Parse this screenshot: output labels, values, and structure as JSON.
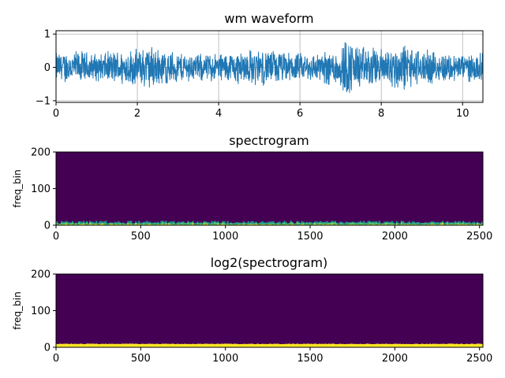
{
  "chart_data": [
    {
      "type": "line",
      "title": "wm waveform",
      "xlabel": "",
      "ylabel": "",
      "xlim": [
        0,
        10.5
      ],
      "ylim": [
        -1.05,
        1.1
      ],
      "xticks": [
        0,
        2,
        4,
        6,
        8,
        10
      ],
      "xtick_labels": [
        "0",
        "2",
        "4",
        "6",
        "8",
        "10"
      ],
      "yticks": [
        -1,
        0,
        1
      ],
      "ytick_labels": [
        "−1",
        "0",
        "1"
      ],
      "grid": true,
      "color": "#1f77b4",
      "envelope": {
        "x": [
          0,
          0.5,
          1,
          1.5,
          2,
          2.3,
          2.7,
          3,
          3.5,
          4,
          4.5,
          5,
          5.5,
          6,
          6.5,
          7,
          7.1,
          7.5,
          8,
          8.5,
          9,
          9.5,
          10,
          10.5
        ],
        "amplitude": [
          0.5,
          0.55,
          0.45,
          0.55,
          0.6,
          0.75,
          0.55,
          0.5,
          0.45,
          0.5,
          0.55,
          0.6,
          0.55,
          0.45,
          0.5,
          0.7,
          1.0,
          0.7,
          0.6,
          0.8,
          0.55,
          0.5,
          0.45,
          0.45
        ]
      }
    },
    {
      "type": "heatmap",
      "title": "spectrogram",
      "xlabel": "",
      "ylabel": "freq_bin",
      "xlim": [
        0,
        2520
      ],
      "ylim": [
        0,
        200
      ],
      "xticks": [
        0,
        500,
        1000,
        1500,
        2000,
        2500
      ],
      "xtick_labels": [
        "0",
        "500",
        "1000",
        "1500",
        "2000",
        "2500"
      ],
      "yticks": [
        0,
        100,
        200
      ],
      "ytick_labels": [
        "0",
        "100",
        "200"
      ],
      "colormap": "viridis",
      "background_color": "#440154",
      "energy_band_freq_bins": [
        0,
        12
      ],
      "band_colors": [
        "#21918c",
        "#5ec962",
        "#fde725"
      ]
    },
    {
      "type": "heatmap",
      "title": "log2(spectrogram)",
      "xlabel": "",
      "ylabel": "freq_bin",
      "xlim": [
        0,
        2520
      ],
      "ylim": [
        0,
        200
      ],
      "xticks": [
        0,
        500,
        1000,
        1500,
        2000,
        2500
      ],
      "xtick_labels": [
        "0",
        "500",
        "1000",
        "1500",
        "2000",
        "2500"
      ],
      "yticks": [
        0,
        100,
        200
      ],
      "ytick_labels": [
        "0",
        "100",
        "200"
      ],
      "colormap": "viridis",
      "background_color": "#440154",
      "energy_band_freq_bins": [
        0,
        10
      ],
      "band_colors": [
        "#fde725"
      ]
    }
  ]
}
